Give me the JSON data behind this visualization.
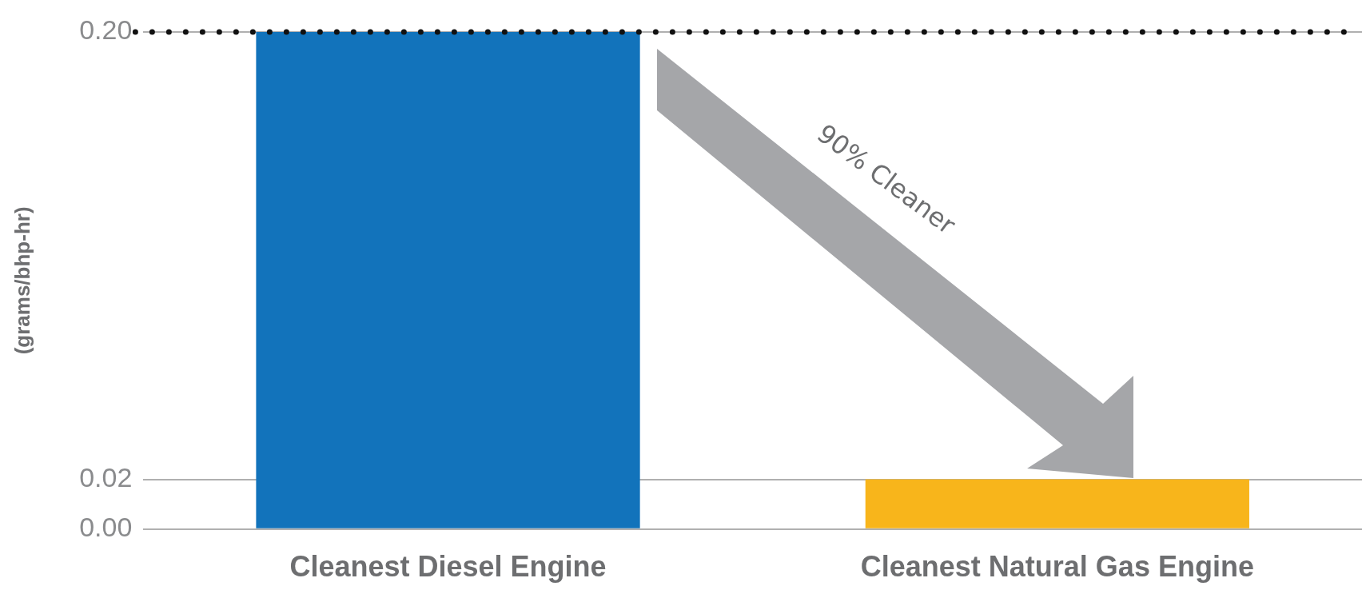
{
  "chart_data": {
    "type": "bar",
    "ylabel": "(grams/bhp-hr)",
    "categories": [
      "Cleanest Diesel Engine",
      "Cleanest Natural Gas Engine"
    ],
    "values": [
      0.2,
      0.02
    ],
    "colors": [
      "#1273bb",
      "#f8b51b"
    ],
    "ylim": [
      0,
      0.2
    ],
    "yticks": [
      {
        "value": 0,
        "label": "0.00"
      },
      {
        "value": 0.02,
        "label": "0.02"
      },
      {
        "value": 0.2,
        "label": "0.20"
      }
    ],
    "grid": "y",
    "legend": false,
    "ref_lines": [
      {
        "axis": "y",
        "value": 0.2,
        "color": "#111111",
        "line_style": "dotted"
      }
    ],
    "annotations": [
      "90% Cleaner"
    ]
  }
}
